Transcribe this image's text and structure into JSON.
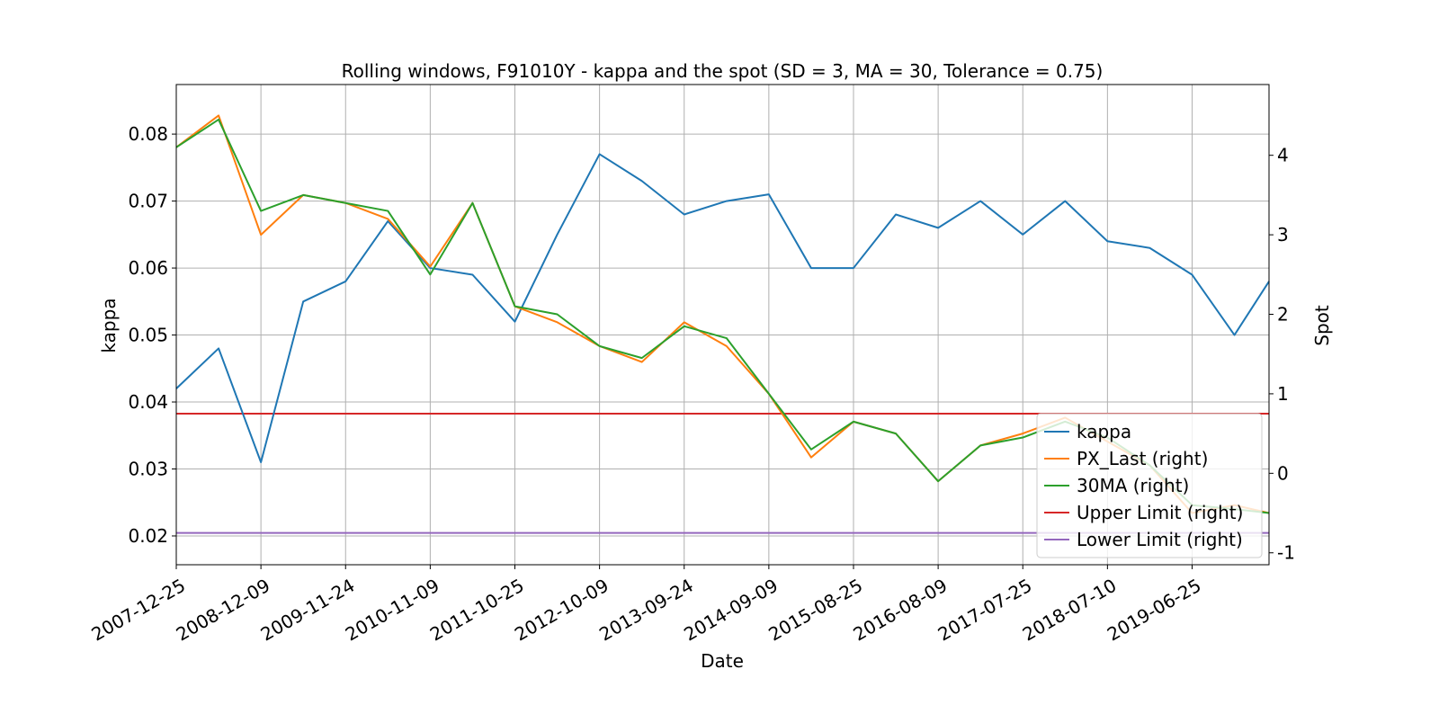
{
  "chart_data": {
    "type": "line",
    "title": "Rolling windows, F91010Y - kappa and the spot (SD = 3, MA = 30, Tolerance  = 0.75)",
    "x_label": "Date",
    "y_label": "kappa",
    "y2_label": "Spot",
    "x": [
      "2007-12-25",
      "2008-06-17",
      "2008-12-09",
      "2009-06-02",
      "2009-11-24",
      "2010-05-18",
      "2010-11-09",
      "2011-05-03",
      "2011-10-25",
      "2012-04-17",
      "2012-10-09",
      "2013-04-02",
      "2013-09-24",
      "2014-03-18",
      "2014-09-09",
      "2015-03-03",
      "2015-08-25",
      "2016-02-16",
      "2016-08-09",
      "2017-01-31",
      "2017-07-25",
      "2018-01-16",
      "2018-07-10",
      "2019-01-01",
      "2019-06-25",
      "2019-12-17",
      "2020-05-08"
    ],
    "xlim": [
      "2007-12-25",
      "2020-05-08"
    ],
    "xticks": [
      "2007-12-25",
      "2008-12-09",
      "2009-11-24",
      "2010-11-09",
      "2011-10-25",
      "2012-10-09",
      "2013-09-24",
      "2014-09-09",
      "2015-08-25",
      "2016-08-09",
      "2017-07-25",
      "2018-07-10",
      "2019-06-25"
    ],
    "ylim": [
      0.0157,
      0.0874
    ],
    "yticks": [
      0.02,
      0.03,
      0.04,
      0.05,
      0.06,
      0.07,
      0.08
    ],
    "y2lim": [
      -1.15,
      4.89
    ],
    "y2ticks": [
      -1,
      0,
      1,
      2,
      3,
      4
    ],
    "grid": true,
    "legend": "lower right",
    "series": [
      {
        "name": "kappa",
        "color": "#1f77b4",
        "values": [
          0.042,
          0.048,
          0.031,
          0.055,
          0.058,
          0.067,
          0.06,
          0.059,
          0.052,
          0.065,
          0.077,
          0.073,
          0.068,
          0.07,
          0.071,
          0.06,
          0.06,
          0.068,
          0.066,
          0.07,
          0.065,
          0.07,
          0.064,
          0.063,
          0.059,
          0.05,
          0.058
        ]
      },
      {
        "name": "PX_Last (right)",
        "color": "#ff7f0e",
        "axis": "y2",
        "values": [
          4.1,
          4.5,
          3.0,
          3.5,
          3.4,
          3.2,
          2.6,
          3.4,
          2.1,
          1.9,
          1.6,
          1.4,
          1.9,
          1.6,
          1.0,
          0.2,
          0.65,
          0.5,
          -0.1,
          0.35,
          0.5,
          0.7,
          0.4,
          0.1,
          -0.5,
          -0.4,
          -0.5
        ]
      },
      {
        "name": "30MA (right)",
        "color": "#2ca02c",
        "axis": "y2",
        "values": [
          4.1,
          4.45,
          3.3,
          3.5,
          3.4,
          3.3,
          2.5,
          3.4,
          2.1,
          2.0,
          1.6,
          1.45,
          1.85,
          1.7,
          1.0,
          0.3,
          0.65,
          0.5,
          -0.1,
          0.35,
          0.45,
          0.65,
          0.45,
          0.1,
          -0.4,
          -0.45,
          -0.5
        ]
      }
    ],
    "hlines": [
      {
        "name": "Upper Limit (right)",
        "color": "#d62728",
        "axis": "y2",
        "value": 0.75
      },
      {
        "name": "Lower Limit (right)",
        "color": "#9467bd",
        "axis": "y2",
        "value": -0.75
      }
    ]
  }
}
